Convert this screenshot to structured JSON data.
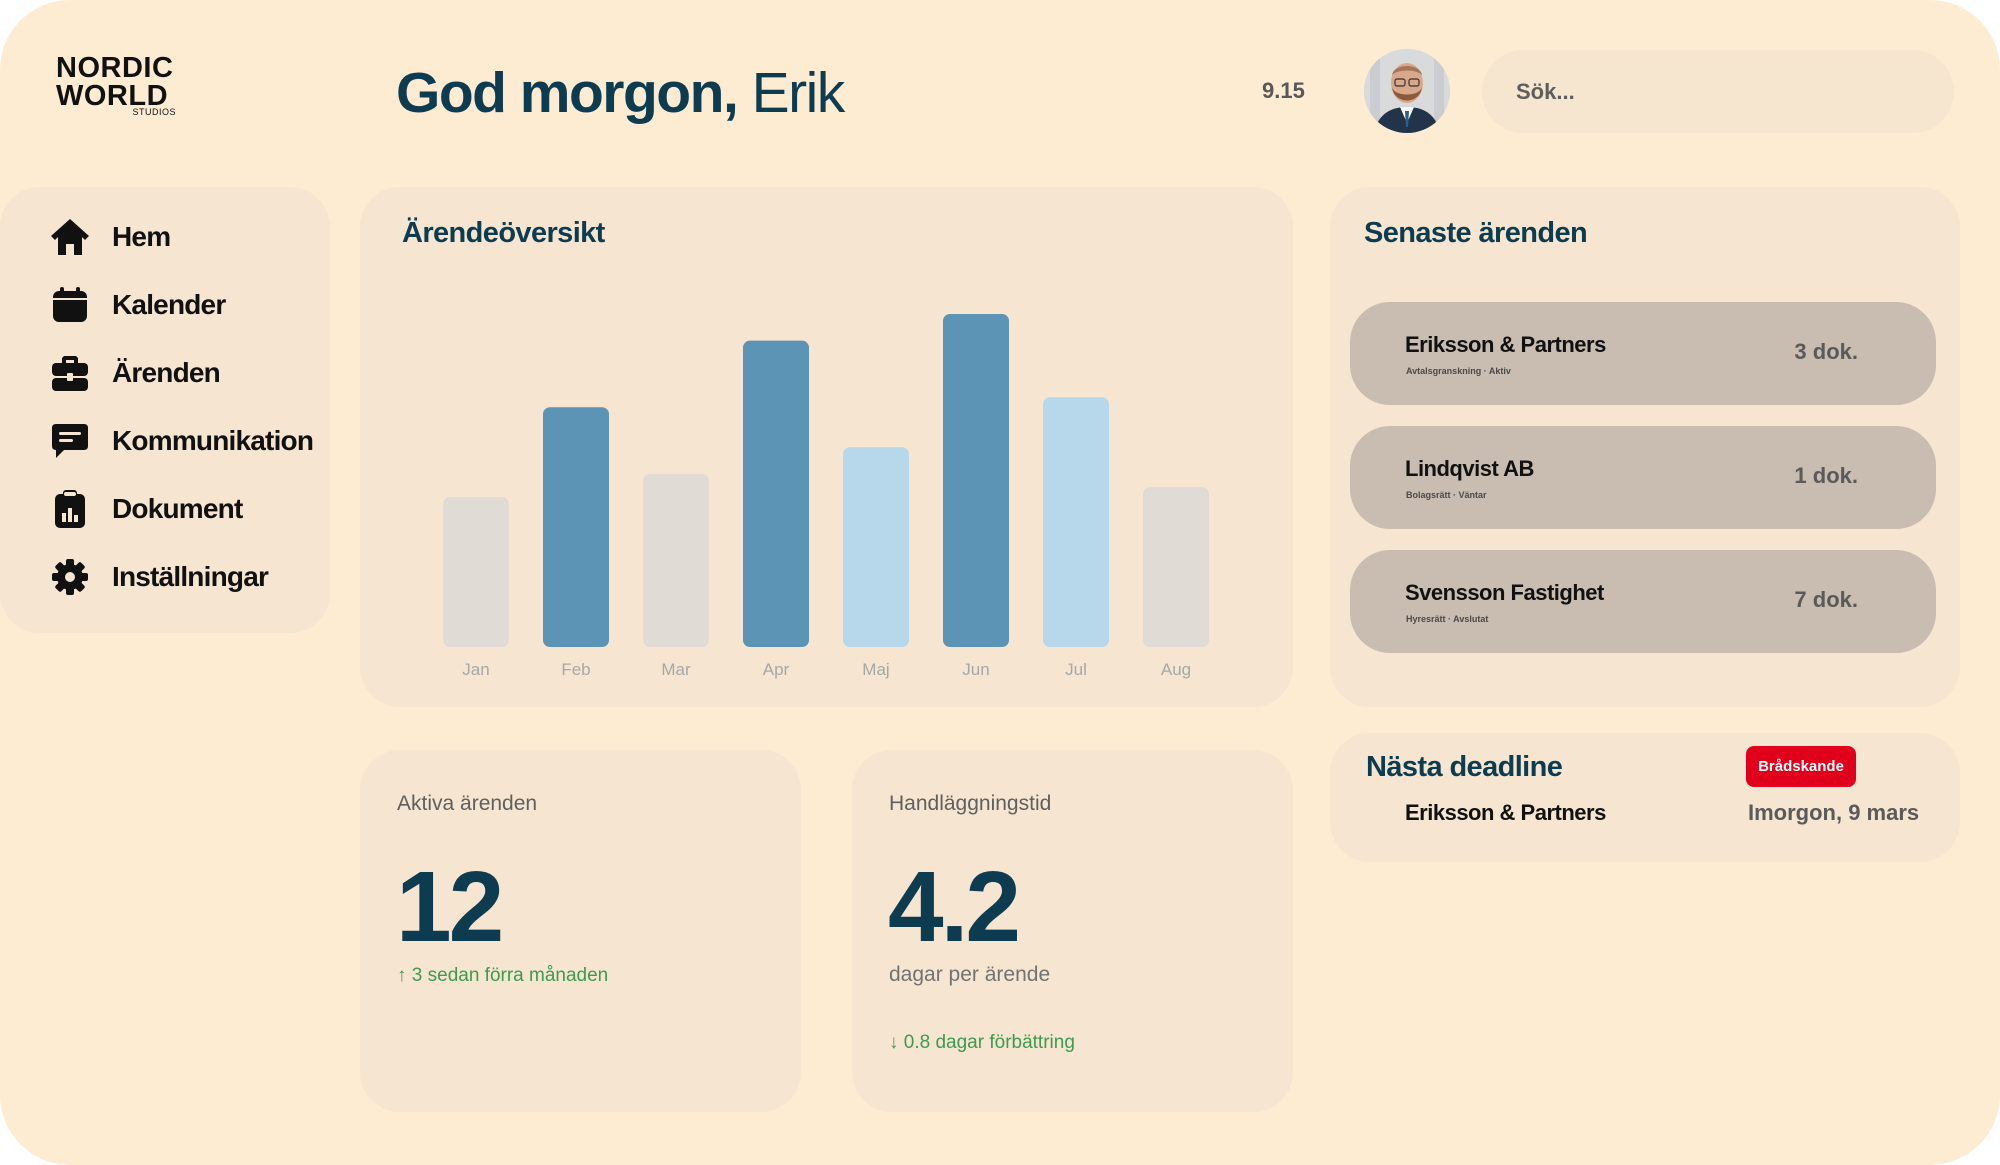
{
  "brand": {
    "line1": "NORDIC",
    "line2": "WORLD",
    "sub": "STUDIOS"
  },
  "header": {
    "greeting_bold": "God morgon,",
    "greeting_name": " Erik",
    "time": "9.15",
    "search_placeholder": "Sök..."
  },
  "sidebar": {
    "items": [
      {
        "label": "Hem",
        "icon": "home-icon"
      },
      {
        "label": "Kalender",
        "icon": "calendar-icon"
      },
      {
        "label": "Ärenden",
        "icon": "briefcase-icon"
      },
      {
        "label": "Kommunikation",
        "icon": "chat-icon"
      },
      {
        "label": "Dokument",
        "icon": "clipboard-chart-icon"
      },
      {
        "label": "Inställningar",
        "icon": "gear-icon"
      }
    ]
  },
  "overview": {
    "title": "Ärendeöversikt"
  },
  "chart_data": {
    "type": "bar",
    "title": "Ärendeöversikt",
    "categories": [
      "Jan",
      "Feb",
      "Mar",
      "Apr",
      "Maj",
      "Jun",
      "Jul",
      "Aug"
    ],
    "values": [
      45,
      72,
      52,
      92,
      60,
      100,
      75,
      48
    ],
    "bar_colors": [
      "#e0dbd5",
      "#5b94b5",
      "#e0dbd5",
      "#5b94b5",
      "#b7d7ea",
      "#5b94b5",
      "#b7d7ea",
      "#e0dbd5"
    ],
    "xlabel": "",
    "ylabel": "",
    "ylim": [
      0,
      100
    ],
    "grid": false,
    "legend": "none"
  },
  "recent": {
    "title": "Senaste ärenden",
    "items": [
      {
        "name": "Eriksson & Partners",
        "sub": "Avtalsgranskning · Aktiv",
        "docs": "3 dok."
      },
      {
        "name": "Lindqvist AB",
        "sub": "Bolagsrätt · Väntar",
        "docs": "1 dok."
      },
      {
        "name": "Svensson Fastighet",
        "sub": "Hyresrätt · Avslutat",
        "docs": "7 dok."
      }
    ]
  },
  "deadline": {
    "title": "Nästa deadline",
    "badge": "Brådskande",
    "client": "Eriksson & Partners",
    "date": "Imorgon, 9 mars"
  },
  "stats": {
    "active": {
      "label": "Aktiva ärenden",
      "value": "12",
      "trend": "↑ 3 sedan förra månaden"
    },
    "handling": {
      "label": "Handläggningstid",
      "value": "4.2",
      "sub": "dagar per ärende",
      "trend": "↓ 0.8 dagar förbättring"
    }
  },
  "colors": {
    "background": "#fdebd2",
    "card": "#f6e6d1",
    "heading": "#0d3b50",
    "bar_dark": "#5b94b5",
    "bar_light": "#b7d7ea",
    "bar_neutral": "#e0dbd5",
    "badge": "#e0001b",
    "trend_positive": "#3d9b4f",
    "case_item": "#c8bdb0"
  }
}
